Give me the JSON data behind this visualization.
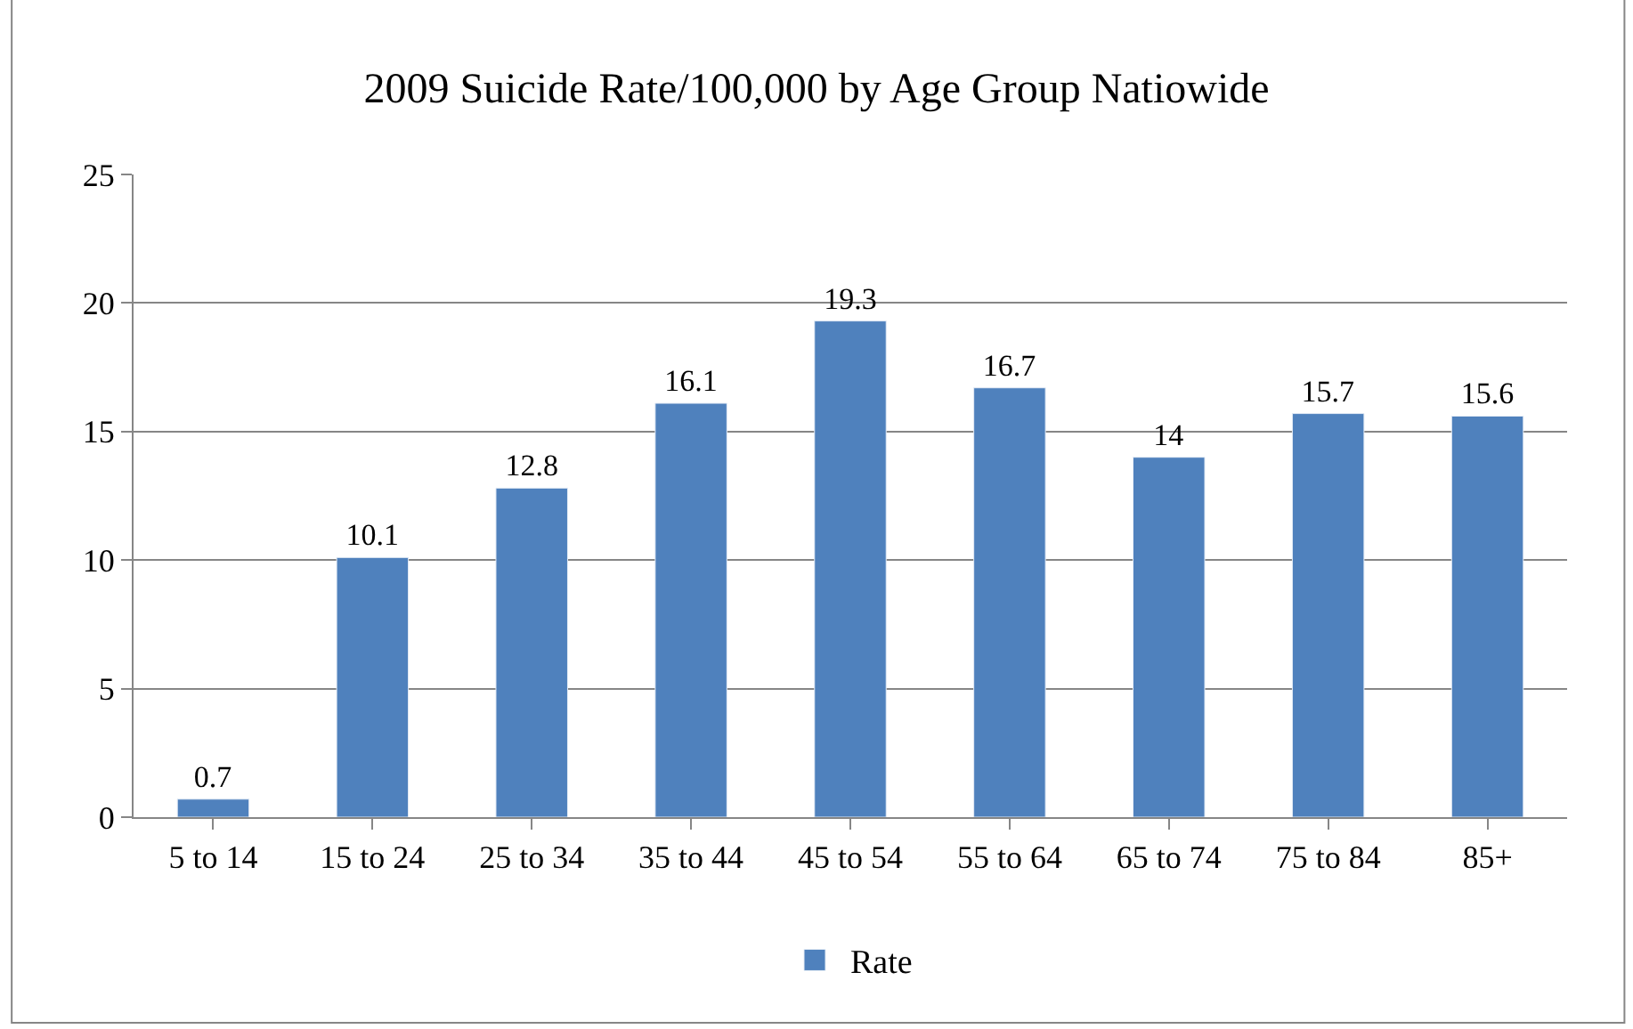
{
  "chart_data": {
    "type": "bar",
    "title": "2009 Suicide Rate/100,000 by Age Group Natiowide",
    "categories": [
      "5 to 14",
      "15 to 24",
      "25 to 34",
      "35 to 44",
      "45 to 54",
      "55 to 64",
      "65 to 74",
      "75 to 84",
      "85+"
    ],
    "series": [
      {
        "name": "Rate",
        "color": "#4f81bd",
        "values": [
          0.7,
          10.1,
          12.8,
          16.1,
          19.3,
          16.7,
          14,
          15.7,
          15.6
        ]
      }
    ],
    "ylim": [
      0,
      25
    ],
    "yticks": [
      0,
      5,
      10,
      15,
      20,
      25
    ],
    "grid": "y",
    "legend": "bottom",
    "data_labels": true
  }
}
